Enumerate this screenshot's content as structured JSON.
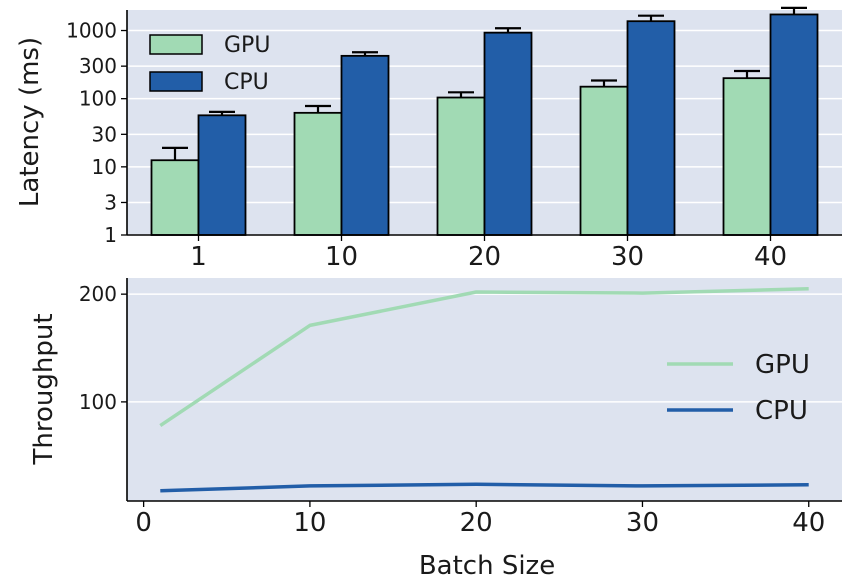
{
  "chart_data": [
    {
      "type": "bar",
      "ylabel": "Latency (ms)",
      "yscale": "log",
      "ylim": [
        1,
        2000
      ],
      "yticks": [
        1,
        3,
        10,
        30,
        100,
        300,
        1000
      ],
      "ytick_labels": [
        "1",
        "3",
        "10",
        "30",
        "100",
        "300",
        "1000"
      ],
      "categories": [
        "1",
        "10",
        "20",
        "30",
        "40"
      ],
      "grid": "horizontal",
      "legend_position": "top-left",
      "series": [
        {
          "name": "GPU",
          "color": "#a1dab4",
          "values": [
            12.5,
            62,
            104,
            150,
            200
          ],
          "error_upper": [
            19,
            78,
            124,
            185,
            255
          ]
        },
        {
          "name": "CPU",
          "color": "#225ea8",
          "values": [
            57,
            425,
            930,
            1370,
            1720
          ],
          "error_upper": [
            64,
            480,
            1080,
            1650,
            2150
          ]
        }
      ]
    },
    {
      "type": "line",
      "xlabel": "Batch Size",
      "ylabel": "Throughput",
      "xlim": [
        -1,
        42
      ],
      "ylim": [
        8,
        215
      ],
      "xticks": [
        0,
        10,
        20,
        30,
        40
      ],
      "xtick_labels": [
        "0",
        "10",
        "20",
        "30",
        "40"
      ],
      "yticks": [
        100,
        200
      ],
      "ytick_labels": [
        "100",
        "200"
      ],
      "grid": "horizontal",
      "legend_position": "right",
      "x": [
        1,
        10,
        20,
        30,
        40
      ],
      "series": [
        {
          "name": "GPU",
          "color": "#a1dab4",
          "values": [
            78,
            171,
            202,
            201,
            205
          ]
        },
        {
          "name": "CPU",
          "color": "#225ea8",
          "values": [
            17.5,
            22,
            23.5,
            22,
            23
          ]
        }
      ]
    }
  ]
}
